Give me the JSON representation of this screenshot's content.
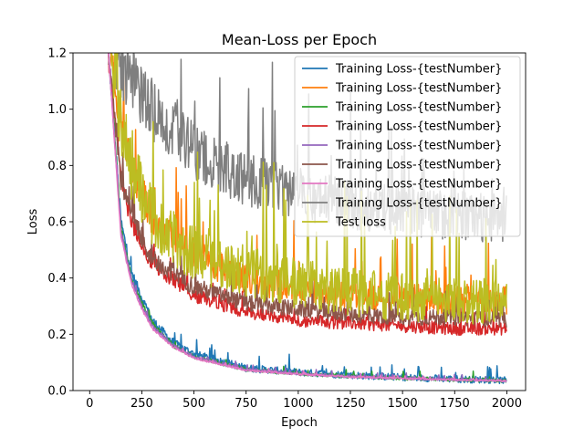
{
  "chart_data": {
    "type": "line",
    "title": "Mean-Loss per Epoch",
    "xlabel": "Epoch",
    "ylabel": "Loss",
    "xlim": [
      -80,
      2090
    ],
    "ylim": [
      0.0,
      1.2
    ],
    "xticks": [
      0,
      250,
      500,
      750,
      1000,
      1250,
      1500,
      1750,
      2000
    ],
    "yticks": [
      0.0,
      0.2,
      0.4,
      0.6,
      0.8,
      1.0,
      1.2
    ],
    "xtick_labels": [
      "0",
      "250",
      "500",
      "750",
      "1000",
      "1250",
      "1500",
      "1750",
      "2000"
    ],
    "ytick_labels": [
      "0.0",
      "0.2",
      "0.4",
      "0.6",
      "0.8",
      "1.0",
      "1.2"
    ],
    "grid": false,
    "legend_position": "top-right",
    "series": [
      {
        "name": "Training Loss-{testNumber}",
        "color": "#1f77b4",
        "x": [
          90,
          150,
          200,
          250,
          300,
          400,
          500,
          750,
          1000,
          1250,
          1500,
          1750,
          2000
        ],
        "values": [
          1.2,
          0.6,
          0.42,
          0.33,
          0.25,
          0.17,
          0.13,
          0.08,
          0.065,
          0.055,
          0.047,
          0.041,
          0.036
        ],
        "noise": 0.02
      },
      {
        "name": "Training Loss-{testNumber}",
        "color": "#ff7f0e",
        "x": [
          100,
          150,
          200,
          300,
          500,
          750,
          1000,
          1250,
          1500,
          1750,
          2000
        ],
        "values": [
          1.2,
          0.95,
          0.78,
          0.62,
          0.48,
          0.4,
          0.36,
          0.34,
          0.33,
          0.32,
          0.32
        ],
        "noise": 0.06
      },
      {
        "name": "Training Loss-{testNumber}",
        "color": "#2ca02c",
        "x": [
          90,
          150,
          200,
          250,
          300,
          400,
          500,
          750,
          1000,
          1250,
          1500,
          1750,
          2000
        ],
        "values": [
          1.2,
          0.58,
          0.4,
          0.31,
          0.24,
          0.16,
          0.12,
          0.075,
          0.06,
          0.05,
          0.044,
          0.039,
          0.035
        ],
        "noise": 0.01
      },
      {
        "name": "Training Loss-{testNumber}",
        "color": "#d62728",
        "x": [
          90,
          150,
          200,
          300,
          500,
          750,
          1000,
          1250,
          1500,
          1750,
          2000
        ],
        "values": [
          1.2,
          0.75,
          0.6,
          0.45,
          0.34,
          0.28,
          0.25,
          0.24,
          0.23,
          0.22,
          0.22
        ],
        "noise": 0.03
      },
      {
        "name": "Training Loss-{testNumber}",
        "color": "#9467bd",
        "x": [
          90,
          150,
          200,
          250,
          300,
          400,
          500,
          750,
          1000,
          1250,
          1500,
          1750,
          2000
        ],
        "values": [
          1.2,
          0.57,
          0.39,
          0.3,
          0.23,
          0.16,
          0.12,
          0.075,
          0.06,
          0.05,
          0.044,
          0.039,
          0.035
        ],
        "noise": 0.008
      },
      {
        "name": "Training Loss-{testNumber}",
        "color": "#8c564b",
        "x": [
          90,
          150,
          200,
          300,
          500,
          750,
          1000,
          1250,
          1500,
          1750,
          2000
        ],
        "values": [
          1.2,
          0.75,
          0.62,
          0.47,
          0.37,
          0.31,
          0.29,
          0.27,
          0.26,
          0.26,
          0.25
        ],
        "noise": 0.035
      },
      {
        "name": "Training Loss-{testNumber}",
        "color": "#e377c2",
        "x": [
          90,
          150,
          200,
          250,
          300,
          400,
          500,
          750,
          1000,
          1250,
          1500,
          1750,
          2000
        ],
        "values": [
          1.2,
          0.55,
          0.38,
          0.29,
          0.22,
          0.155,
          0.115,
          0.072,
          0.058,
          0.049,
          0.043,
          0.038,
          0.034
        ],
        "noise": 0.005
      },
      {
        "name": "Training Loss-{testNumber}",
        "color": "#7f7f7f",
        "x": [
          120,
          200,
          300,
          500,
          750,
          1000,
          1250,
          1500,
          1750,
          2000
        ],
        "values": [
          1.2,
          1.1,
          1.0,
          0.85,
          0.75,
          0.7,
          0.66,
          0.64,
          0.62,
          0.61
        ],
        "noise": 0.08
      },
      {
        "name": "Test loss",
        "color": "#bcbd22",
        "x": [
          100,
          150,
          200,
          300,
          500,
          750,
          1000,
          1250,
          1500,
          1750,
          2000
        ],
        "values": [
          1.2,
          0.95,
          0.78,
          0.62,
          0.48,
          0.42,
          0.38,
          0.35,
          0.33,
          0.32,
          0.31
        ],
        "noise": 0.1
      }
    ]
  }
}
